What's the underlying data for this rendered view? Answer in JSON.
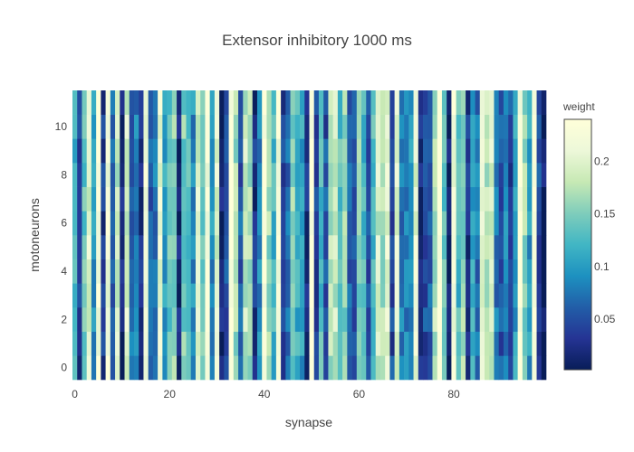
{
  "chart_data": {
    "type": "heatmap",
    "title": "Extensor inhibitory 1000 ms",
    "xlabel": "synapse",
    "ylabel": "motoneurons",
    "x_range": [
      -0.5,
      99.5
    ],
    "y_range": [
      -0.5,
      11.5
    ],
    "x_ticks": [
      0,
      20,
      40,
      60,
      80
    ],
    "x_tick_labels": [
      "0",
      "20",
      "40",
      "60",
      "80"
    ],
    "y_ticks": [
      0,
      2,
      4,
      6,
      8,
      10
    ],
    "y_tick_labels": [
      "0",
      "2",
      "4",
      "6",
      "8",
      "10"
    ],
    "n_synapses": 100,
    "n_motoneurons": 12,
    "z_range": [
      0.002,
      0.24
    ],
    "colorbar": {
      "title": "weight",
      "ticks": [
        0.05,
        0.1,
        0.15,
        0.2
      ],
      "tick_labels": [
        "0.05",
        "0.1",
        "0.15",
        "0.2"
      ]
    },
    "colorscale": [
      [
        0.0,
        "#081d58"
      ],
      [
        0.125,
        "#253494"
      ],
      [
        0.25,
        "#225ea8"
      ],
      [
        0.375,
        "#1d91c0"
      ],
      [
        0.5,
        "#41b6c4"
      ],
      [
        0.625,
        "#7fcdbb"
      ],
      [
        0.75,
        "#c7e9b4"
      ],
      [
        0.875,
        "#edf8d9"
      ],
      [
        1.0,
        "#ffffd9"
      ]
    ],
    "column_weights": [
      0.124,
      0.034,
      0.139,
      0.201,
      0.092,
      0.228,
      0.034,
      0.224,
      0.064,
      0.184,
      0.012,
      0.195,
      0.068,
      0.081,
      0.032,
      0.214,
      0.055,
      0.076,
      0.211,
      0.105,
      0.14,
      0.158,
      0.014,
      0.149,
      0.137,
      0.089,
      0.196,
      0.144,
      0.227,
      0.091,
      0.2,
      0.013,
      0.049,
      0.235,
      0.166,
      0.055,
      0.182,
      0.165,
      0.027,
      0.083,
      0.238,
      0.161,
      0.119,
      0.225,
      0.039,
      0.071,
      0.154,
      0.118,
      0.103,
      0.02,
      0.232,
      0.043,
      0.131,
      0.05,
      0.175,
      0.182,
      0.135,
      0.155,
      0.065,
      0.061,
      0.153,
      0.124,
      0.051,
      0.124,
      0.188,
      0.167,
      0.209,
      0.045,
      0.198,
      0.079,
      0.08,
      0.096,
      0.208,
      0.024,
      0.046,
      0.061,
      0.173,
      0.237,
      0.135,
      0.014,
      0.221,
      0.126,
      0.159,
      0.025,
      0.112,
      0.075,
      0.2,
      0.177,
      0.195,
      0.073,
      0.055,
      0.084,
      0.044,
      0.101,
      0.231,
      0.16,
      0.1,
      0.223,
      0.046,
      0.008
    ],
    "z_note": "Each motoneuron row repeats the same column pattern with small variations; z[row][col] = column_weights[col] plus a per-row variation applied by the script."
  }
}
